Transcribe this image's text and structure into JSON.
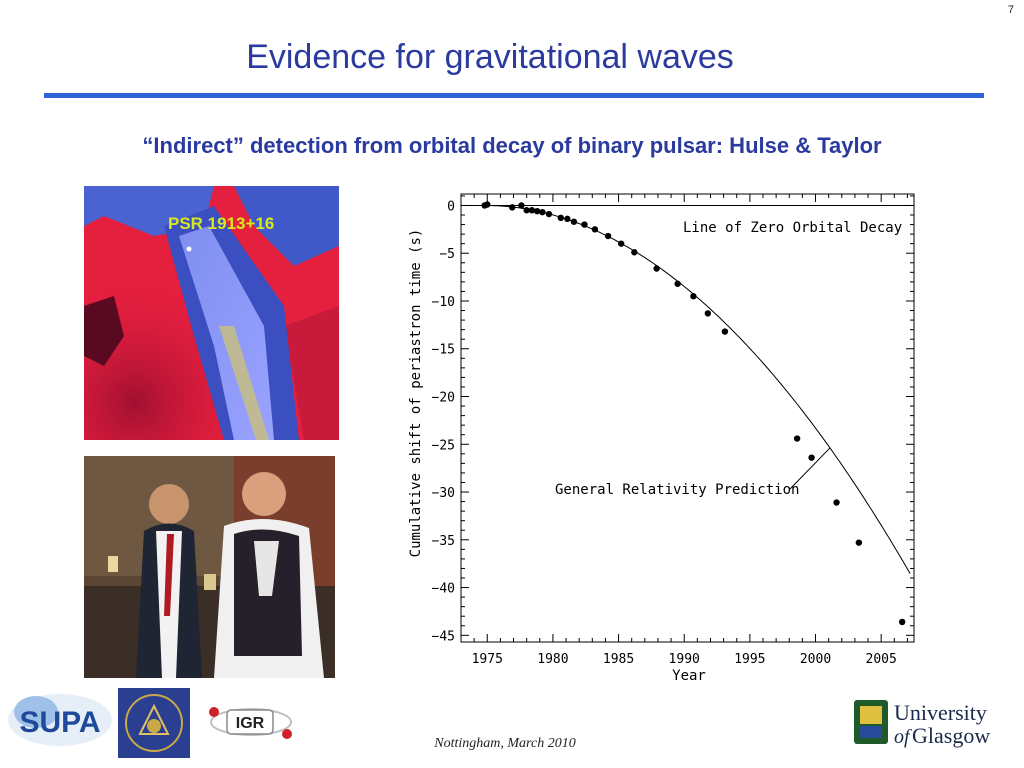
{
  "slide": {
    "number": "7",
    "title": "Evidence for gravitational waves",
    "subtitle": "“Indirect” detection from orbital decay of binary pulsar: Hulse & Taylor",
    "footer": "Nottingham, March 2010"
  },
  "pulsar_image": {
    "label": "PSR 1913+16"
  },
  "logos": {
    "supa": "SUPA",
    "astro": "ASTRONOMY ASTROPHYSICS",
    "igr": "IGR",
    "glasgow_line1": "University",
    "glasgow_line2_of": "of",
    "glasgow_line2": "Glasgow"
  },
  "colors": {
    "title": "#2b3a9e",
    "rule": "#2f63d8",
    "pulsar_label": "#d8e81a"
  },
  "chart_data": {
    "type": "scatter",
    "xlabel": "Year",
    "ylabel": "Cumulative shift of periastron time (s)",
    "xlim": [
      1973,
      2007.5
    ],
    "ylim": [
      -45.7,
      1.2
    ],
    "xticks": [
      1975,
      1980,
      1985,
      1990,
      1995,
      2000,
      2005
    ],
    "yticks": [
      0,
      -5,
      -10,
      -15,
      -20,
      -25,
      -30,
      -35,
      -40,
      -45
    ],
    "xtick_labels": [
      "1975",
      "1980",
      "1985",
      "1990",
      "1995",
      "2000",
      "2005"
    ],
    "ytick_labels": [
      "0",
      "−5",
      "−10",
      "−15",
      "−20",
      "−25",
      "−30",
      "−35",
      "−40",
      "−45"
    ],
    "annotations": [
      "Line of Zero Orbital Decay",
      "General Relativity Prediction"
    ],
    "grid": false,
    "points": [
      [
        1974.8,
        0.0
      ],
      [
        1975.0,
        0.1
      ],
      [
        1976.9,
        -0.2
      ],
      [
        1977.6,
        0.0
      ],
      [
        1978.0,
        -0.5
      ],
      [
        1978.4,
        -0.5
      ],
      [
        1978.8,
        -0.6
      ],
      [
        1979.2,
        -0.7
      ],
      [
        1979.7,
        -0.9
      ],
      [
        1980.6,
        -1.3
      ],
      [
        1981.1,
        -1.4
      ],
      [
        1981.6,
        -1.7
      ],
      [
        1982.4,
        -2.0
      ],
      [
        1983.2,
        -2.5
      ],
      [
        1984.2,
        -3.2
      ],
      [
        1985.2,
        -4.0
      ],
      [
        1986.2,
        -4.9
      ],
      [
        1987.9,
        -6.6
      ],
      [
        1989.5,
        -8.2
      ],
      [
        1990.7,
        -9.5
      ],
      [
        1991.8,
        -11.3
      ],
      [
        1993.1,
        -13.2
      ],
      [
        1998.6,
        -24.4
      ],
      [
        1999.7,
        -26.4
      ],
      [
        2001.6,
        -31.1
      ],
      [
        2003.3,
        -35.3
      ],
      [
        2006.6,
        -43.6
      ]
    ],
    "series": [
      {
        "name": "Line of Zero Orbital Decay",
        "type": "line",
        "x": [
          1973,
          2007.5
        ],
        "y": [
          0,
          0
        ]
      },
      {
        "name": "General Relativity Prediction",
        "type": "line",
        "model": "y = -0.0367 * (x - 1974.8)^2"
      }
    ]
  }
}
